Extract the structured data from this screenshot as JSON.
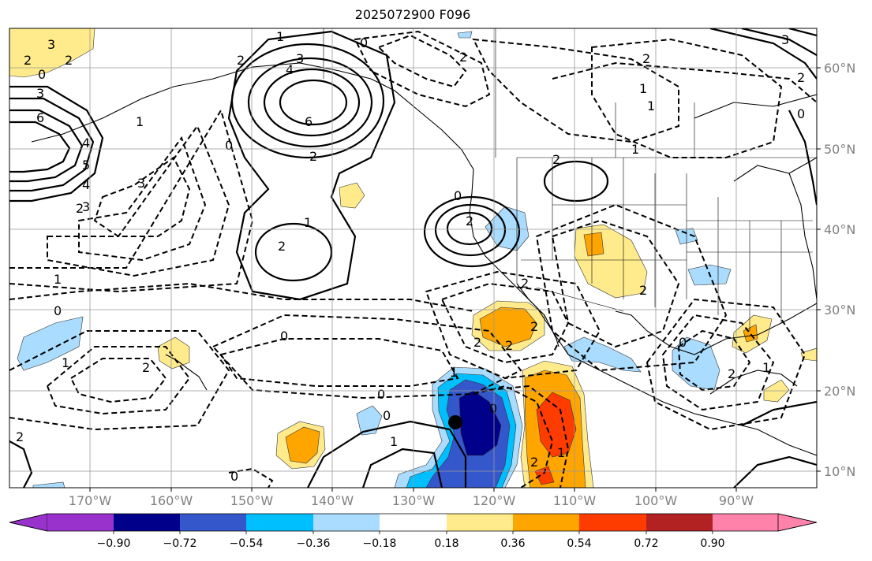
{
  "title": "2025072900 F096",
  "colors": {
    "purple": "#9932cc",
    "navy": "#00008b",
    "royal": "#3557cc",
    "cyan": "#00bfff",
    "lightblue": "#aadcff",
    "white": "#ffffff",
    "lightyellow": "#ffea8c",
    "orange": "#ffa500",
    "redorange": "#ff3c00",
    "firebrick": "#b22222",
    "pink": "#ff82ab"
  },
  "latitude_labels": [
    "60°N",
    "50°N",
    "40°N",
    "30°N",
    "20°N",
    "10°N"
  ],
  "longitude_labels": [
    "170°W",
    "160°W",
    "150°W",
    "140°W",
    "130°W",
    "120°W",
    "110°W",
    "100°W",
    "90°W"
  ],
  "colorbar": {
    "ticks": [
      "−0.90",
      "−0.72",
      "−0.54",
      "−0.36",
      "−0.18",
      "0.18",
      "0.36",
      "0.54",
      "0.72",
      "0.90"
    ]
  },
  "contour_labels": [
    "3",
    "2",
    "2",
    "0",
    "3",
    "6",
    "4",
    "5",
    "4",
    "1",
    "2",
    "3",
    "1",
    "3",
    "4",
    "6",
    "2",
    "0",
    "3",
    "2",
    "1",
    "2",
    "2",
    "0",
    "2",
    "1",
    "0",
    "2",
    "0",
    "2",
    "1",
    "2",
    "2",
    "0",
    "2",
    "2",
    "1",
    "0",
    "1",
    "0",
    "0",
    "1",
    "0",
    "1",
    "1",
    "2",
    "2",
    "2",
    "1",
    "2",
    "0",
    "0",
    "2",
    "3",
    "1",
    "2"
  ],
  "marker": "storm-center"
}
